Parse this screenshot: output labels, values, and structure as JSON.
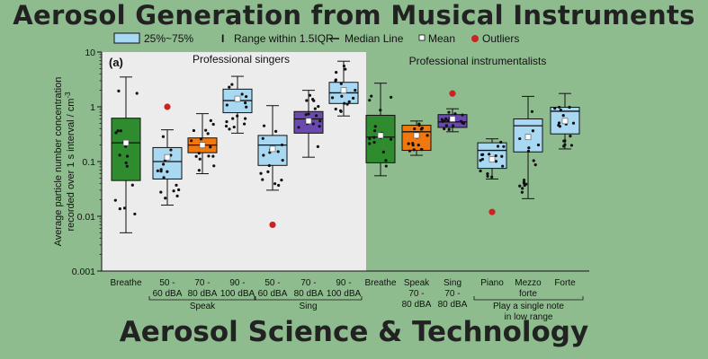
{
  "page": {
    "title": "Aerosol Generation from Musical Instruments",
    "footer": "Aerosol Science & Technology"
  },
  "legend": {
    "box": "25%~75%",
    "range": "Range within 1.5IQR",
    "median": "Median Line",
    "mean": "Mean",
    "outliers": "Outliers"
  },
  "chart_data": {
    "type": "box",
    "panel_label": "(a)",
    "ylabel_line1": "Average particle number concentration",
    "ylabel_line2": "recorded over 1 s interval / cm",
    "ylabel_sup": "-3",
    "yscale": "log",
    "ylim": [
      0.001,
      10
    ],
    "yticks": [
      {
        "v": 10,
        "label": "10"
      },
      {
        "v": 1,
        "label": "1"
      },
      {
        "v": 0.1,
        "label": "0.1"
      },
      {
        "v": 0.01,
        "label": "0.01"
      },
      {
        "v": 0.001,
        "label": "0.001"
      }
    ],
    "section_titles": [
      "Professional singers",
      "Professional instrumentalists"
    ],
    "colors": {
      "green": "#2e8b2e",
      "lightblue": "#a9d8f2",
      "orange": "#f0780f",
      "purple": "#6a4ab0",
      "outlier": "#cc2222",
      "singers_bg": "#ececec"
    },
    "categories": [
      {
        "lines": [
          "Breathe"
        ],
        "color": "green",
        "whislo": 0.005,
        "q1": 0.045,
        "med": 0.22,
        "q3": 0.62,
        "whishi": 3.5,
        "mean": 0.22,
        "outliers": []
      },
      {
        "lines": [
          "50 -",
          "60 dBA"
        ],
        "color": "lightblue",
        "whislo": 0.016,
        "q1": 0.048,
        "med": 0.1,
        "q3": 0.18,
        "whishi": 0.38,
        "mean": 0.12,
        "outliers": [
          1.0
        ]
      },
      {
        "lines": [
          "70 -",
          "80 dBA"
        ],
        "color": "orange",
        "whislo": 0.06,
        "q1": 0.145,
        "med": 0.2,
        "q3": 0.27,
        "whishi": 0.75,
        "mean": 0.2,
        "outliers": []
      },
      {
        "lines": [
          "90 -",
          "100 dBA"
        ],
        "color": "lightblue",
        "whislo": 0.33,
        "q1": 0.78,
        "med": 1.3,
        "q3": 2.1,
        "whishi": 3.6,
        "mean": 1.4,
        "outliers": []
      },
      {
        "lines": [
          "50 -",
          "60 dBA"
        ],
        "color": "lightblue",
        "whislo": 0.03,
        "q1": 0.085,
        "med": 0.2,
        "q3": 0.3,
        "whishi": 1.05,
        "mean": 0.17,
        "outliers": [
          0.007
        ]
      },
      {
        "lines": [
          "70 -",
          "80 dBA"
        ],
        "color": "purple",
        "whislo": 0.12,
        "q1": 0.33,
        "med": 0.6,
        "q3": 0.82,
        "whishi": 2.0,
        "mean": 0.55,
        "outliers": []
      },
      {
        "lines": [
          "90 -",
          "100 dBA"
        ],
        "color": "lightblue",
        "whislo": 0.68,
        "q1": 1.15,
        "med": 1.8,
        "q3": 2.8,
        "whishi": 6.8,
        "mean": 2.0,
        "outliers": []
      },
      {
        "lines": [
          "Breathe"
        ],
        "color": "green",
        "whislo": 0.055,
        "q1": 0.095,
        "med": 0.28,
        "q3": 0.7,
        "whishi": 2.7,
        "mean": 0.3,
        "outliers": []
      },
      {
        "lines": [
          "Speak",
          "70 -",
          "80 dBA"
        ],
        "color": "orange",
        "whislo": 0.13,
        "q1": 0.16,
        "med": 0.35,
        "q3": 0.46,
        "whishi": 0.55,
        "mean": 0.3,
        "outliers": []
      },
      {
        "lines": [
          "Sing",
          "70 -",
          "80 dBA"
        ],
        "color": "purple",
        "whislo": 0.35,
        "q1": 0.42,
        "med": 0.53,
        "q3": 0.72,
        "whishi": 0.92,
        "mean": 0.6,
        "outliers": [
          1.75
        ]
      },
      {
        "lines": [
          "Piano"
        ],
        "color": "lightblue",
        "whislo": 0.048,
        "q1": 0.075,
        "med": 0.16,
        "q3": 0.22,
        "whishi": 0.26,
        "mean": 0.11,
        "outliers": [
          0.012
        ]
      },
      {
        "lines": [
          "Mezzo",
          "forte"
        ],
        "color": "lightblue",
        "whislo": 0.021,
        "q1": 0.15,
        "med": 0.45,
        "q3": 0.6,
        "whishi": 1.55,
        "mean": 0.28,
        "outliers": []
      },
      {
        "lines": [
          "Forte"
        ],
        "color": "lightblue",
        "whislo": 0.17,
        "q1": 0.32,
        "med": 0.83,
        "q3": 0.98,
        "whishi": 1.75,
        "mean": 0.55,
        "outliers": []
      }
    ],
    "group_labels": [
      {
        "text": "Speak",
        "from": 1,
        "to": 3
      },
      {
        "text": "Sing",
        "from": 4,
        "to": 6
      },
      {
        "text": "Play a single note\nin low range",
        "from": 10,
        "to": 12
      }
    ]
  }
}
